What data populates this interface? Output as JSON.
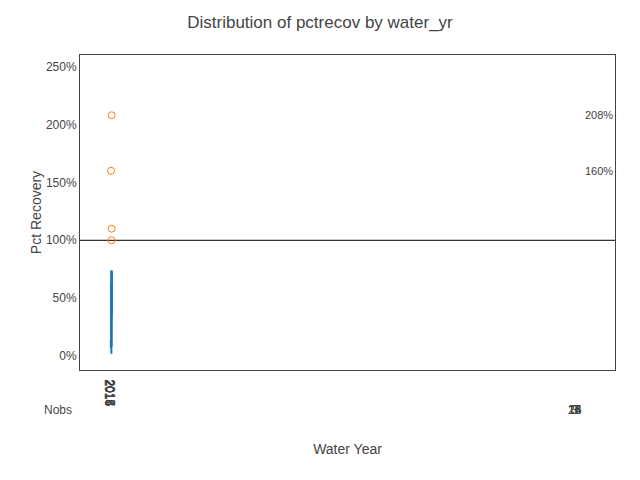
{
  "chart_data": {
    "type": "box",
    "title": "Distribution of pctrecov by water_yr",
    "xlabel": "Water Year",
    "ylabel": "Pct Recovery",
    "categories": [
      2014,
      2015,
      2016,
      2017,
      2018
    ],
    "boxes": [
      {
        "q1": 0.08,
        "median": 0.1,
        "q3": 0.13,
        "whislo": 0.08,
        "whishi": 0.13,
        "mean": 0.1,
        "fliers": []
      },
      {
        "q1": 0.28,
        "median": 0.37,
        "q3": 0.51,
        "whislo": 0.15,
        "whishi": 0.63,
        "mean": 0.44,
        "fliers": [
          1.6
        ]
      },
      {
        "q1": 0.15,
        "median": 0.29,
        "q3": 0.44,
        "whislo": 0.02,
        "whishi": 0.74,
        "mean": 0.31,
        "fliers": []
      },
      {
        "q1": 0.27,
        "median": 0.41,
        "q3": 0.56,
        "whislo": 0.08,
        "whishi": 0.74,
        "mean": 0.54,
        "fliers": [
          1.0,
          1.1,
          2.08
        ]
      },
      {
        "q1": 0.37,
        "median": 0.68,
        "q3": 0.72,
        "whislo": 0.37,
        "whishi": 0.72,
        "mean": 0.59,
        "fliers": []
      }
    ],
    "nobs_label": "Nobs",
    "nobs": [
      3,
      14,
      23,
      15,
      3
    ],
    "reference_line": 1.0,
    "annotations": [
      {
        "text": "160%",
        "x": 2015,
        "y": 1.6
      },
      {
        "text": "208%",
        "x": 2017,
        "y": 2.08
      }
    ],
    "ylim": [
      -0.12,
      2.6
    ],
    "yticks": [
      {
        "value": 0.0,
        "label": "0%"
      },
      {
        "value": 0.5,
        "label": "50%"
      },
      {
        "value": 1.0,
        "label": "100%"
      },
      {
        "value": 1.5,
        "label": "150%"
      },
      {
        "value": 2.0,
        "label": "200%"
      },
      {
        "value": 2.5,
        "label": "250%"
      }
    ],
    "grid": false
  }
}
